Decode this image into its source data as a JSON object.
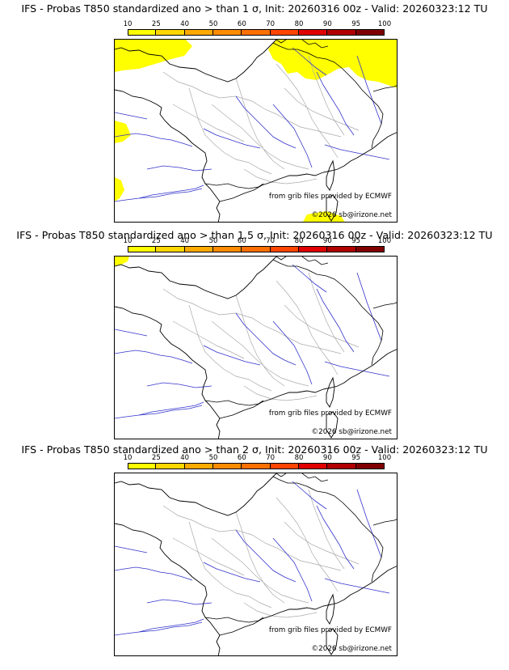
{
  "panels": [
    {
      "title": "IFS - Probas T850  standardized ano > than 1 σ, Init: 20260316 00z - Valid: 20260323:12 TU",
      "has_yellow_fill": true
    },
    {
      "title": "IFS - Probas T850  standardized ano > than 1.5 σ, Init: 20260316 00z - Valid: 20260323:12 TU",
      "has_yellow_fill": true
    },
    {
      "title": "IFS - Probas T850  standardized ano > than 2 σ, Init: 20260316 00z - Valid: 20260323:12 TU",
      "has_yellow_fill": false
    }
  ],
  "colorbar": {
    "ticks": [
      "10",
      "25",
      "40",
      "50",
      "60",
      "70",
      "80",
      "90",
      "95",
      "100"
    ],
    "colors": [
      "#ffff00",
      "#ffd700",
      "#ffaa00",
      "#ff8c00",
      "#ff7000",
      "#ff4500",
      "#e00000",
      "#b00000",
      "#800000"
    ]
  },
  "credits": {
    "source": "from grib files provided by ECMWF",
    "copyright": "©2026 sb@irizone.net"
  },
  "colors": {
    "fill": "#ffff00",
    "rivers": "#3333cc",
    "borders": "#000000",
    "regions": "#aaaaaa"
  }
}
